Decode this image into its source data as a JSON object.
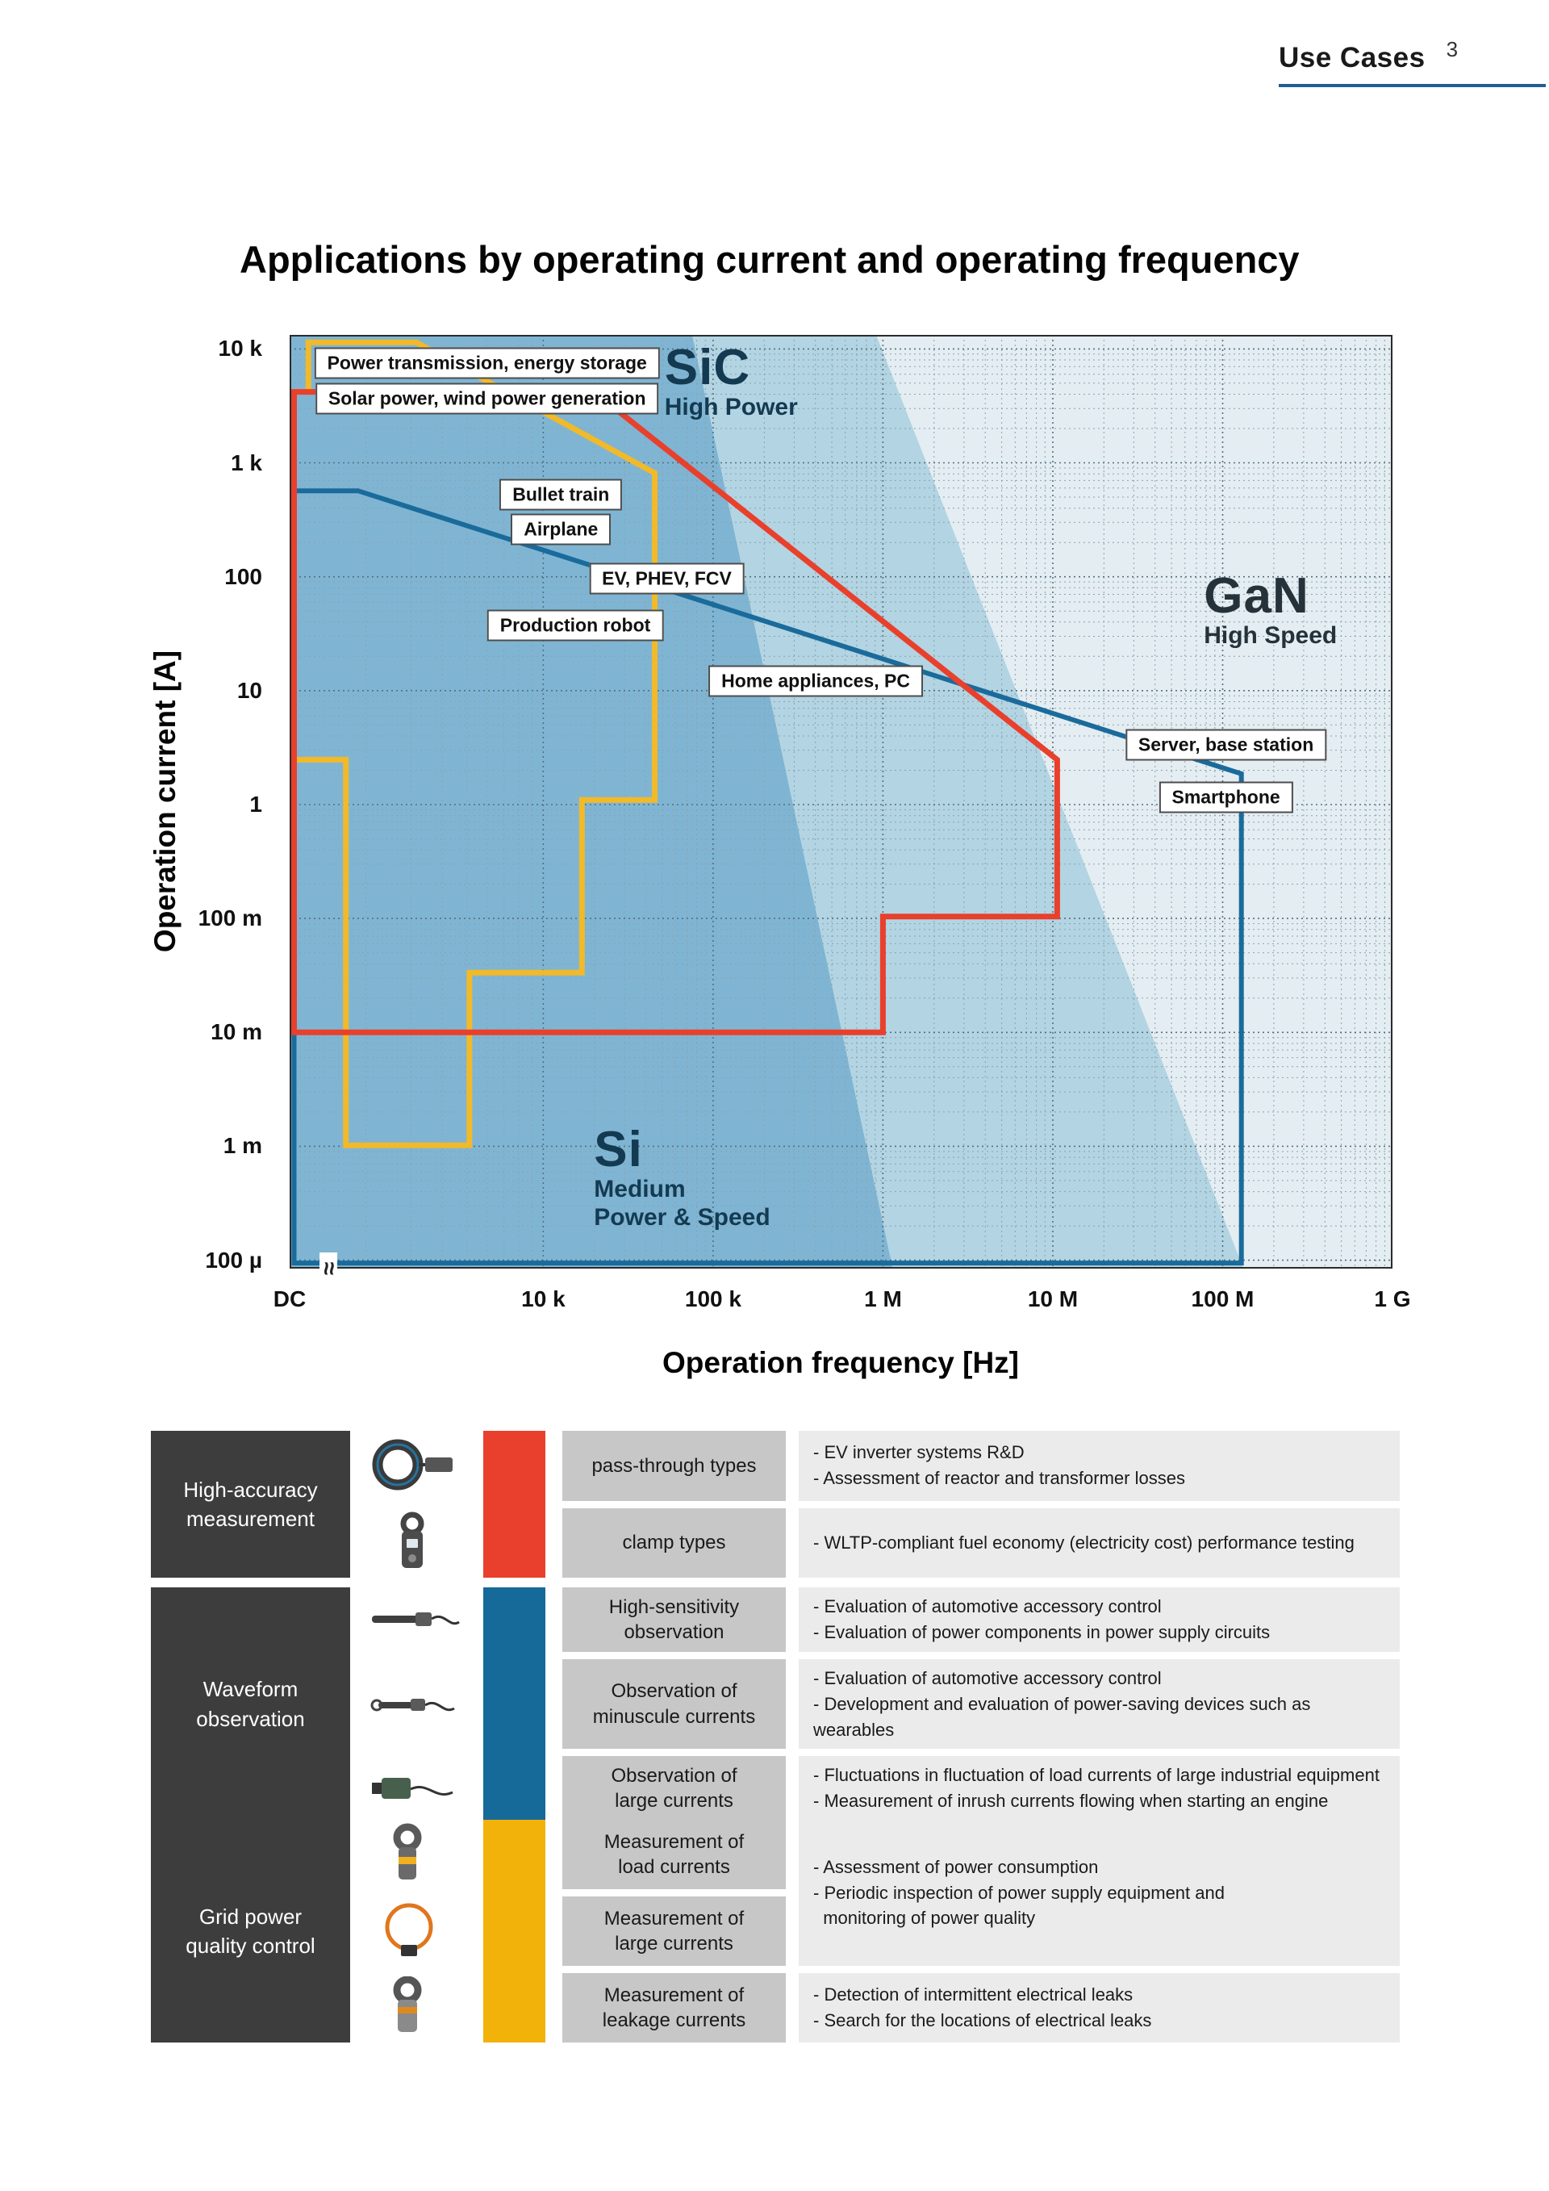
{
  "page": {
    "header": {
      "section_title": "Use Cases",
      "page_number": "3"
    },
    "title": "Applications by operating current and operating frequency"
  },
  "chart_data": {
    "type": "area",
    "title": "Applications by operating current and operating frequency",
    "xlabel": "Operation frequency [Hz]",
    "ylabel": "Operation current [A]",
    "x_scale": "log with axis break after DC",
    "y_scale": "log",
    "grid": "dotted log-log grid",
    "x_ticks": [
      {
        "label": "DC",
        "pos": 0.0
      },
      {
        "label": "10 k",
        "pos": 0.23
      },
      {
        "label": "100 k",
        "pos": 0.384
      },
      {
        "label": "1 M",
        "pos": 0.538
      },
      {
        "label": "10 M",
        "pos": 0.692
      },
      {
        "label": "100 M",
        "pos": 0.846
      },
      {
        "label": "1 G",
        "pos": 1.0
      }
    ],
    "y_ticks": [
      {
        "label": "10 k",
        "pos": 0.015
      },
      {
        "label": "1 k",
        "pos": 0.137
      },
      {
        "label": "100",
        "pos": 0.259
      },
      {
        "label": "10",
        "pos": 0.381
      },
      {
        "label": "1",
        "pos": 0.503
      },
      {
        "label": "100 m",
        "pos": 0.625
      },
      {
        "label": "10 m",
        "pos": 0.747
      },
      {
        "label": "1 m",
        "pos": 0.869
      },
      {
        "label": "100 µ",
        "pos": 0.991
      }
    ],
    "regions": [
      {
        "id": "si",
        "label": "Si",
        "sublabel": "Medium\nPower & Speed",
        "fill": "#7fb5d3",
        "label_color": "#143a52",
        "label_pos": {
          "x": 0.276,
          "y": 0.845
        },
        "polygon": [
          [
            0,
            0
          ],
          [
            0.365,
            0
          ],
          [
            0.547,
            1
          ],
          [
            0,
            1
          ]
        ]
      },
      {
        "id": "sic",
        "label": "SiC",
        "sublabel": "High Power",
        "fill": "#b3d4e2",
        "label_color": "#143a52",
        "label_pos": {
          "x": 0.34,
          "y": 0.008
        },
        "polygon": [
          [
            0.365,
            0
          ],
          [
            0.532,
            0
          ],
          [
            0.865,
            1
          ],
          [
            0.547,
            1
          ]
        ]
      },
      {
        "id": "gan",
        "label": "GaN",
        "sublabel": "High Speed",
        "fill": "#e4edf2",
        "label_color": "#26323a",
        "label_pos": {
          "x": 0.829,
          "y": 0.252
        },
        "polygon": [
          [
            0.532,
            0
          ],
          [
            1,
            0
          ],
          [
            1,
            1
          ],
          [
            0.865,
            1
          ]
        ]
      }
    ],
    "outlines": [
      {
        "id": "waveform-observation",
        "color": "#1a6b9b",
        "width": 6,
        "points": [
          [
            0.004,
            0.167
          ],
          [
            0.062,
            0.167
          ],
          [
            0.863,
            0.47
          ],
          [
            0.863,
            0.994
          ],
          [
            0.004,
            0.994
          ]
        ]
      },
      {
        "id": "grid-power-quality",
        "color": "#f2b929",
        "width": 7,
        "points": [
          [
            0.004,
            0.455
          ],
          [
            0.051,
            0.455
          ],
          [
            0.051,
            0.868
          ],
          [
            0.163,
            0.868
          ],
          [
            0.163,
            0.683
          ],
          [
            0.265,
            0.683
          ],
          [
            0.265,
            0.498
          ],
          [
            0.331,
            0.498
          ],
          [
            0.331,
            0.148
          ],
          [
            0.115,
            0.008
          ],
          [
            0.017,
            0.008
          ],
          [
            0.017,
            0.061
          ],
          [
            0.004,
            0.061
          ]
        ]
      },
      {
        "id": "high-accuracy-measurement",
        "color": "#e8402c",
        "width": 7,
        "points": [
          [
            0.004,
            0.061
          ],
          [
            0.276,
            0.061
          ],
          [
            0.696,
            0.455
          ],
          [
            0.696,
            0.623
          ],
          [
            0.538,
            0.623
          ],
          [
            0.538,
            0.747
          ],
          [
            0.004,
            0.747
          ]
        ]
      }
    ],
    "annotations": [
      {
        "text": "Power transmission, energy storage",
        "x": 0.179,
        "y": 0.03
      },
      {
        "text": "Solar power, wind power generation",
        "x": 0.179,
        "y": 0.068
      },
      {
        "text": "Bullet train",
        "x": 0.246,
        "y": 0.171
      },
      {
        "text": "Airplane",
        "x": 0.246,
        "y": 0.208
      },
      {
        "text": "EV, PHEV, FCV",
        "x": 0.342,
        "y": 0.261
      },
      {
        "text": "Production robot",
        "x": 0.259,
        "y": 0.311
      },
      {
        "text": "Home appliances, PC",
        "x": 0.477,
        "y": 0.371
      },
      {
        "text": "Server, base station",
        "x": 0.849,
        "y": 0.439
      },
      {
        "text": "Smartphone",
        "x": 0.849,
        "y": 0.495
      }
    ]
  },
  "table": {
    "groups": [
      {
        "title": "High-accuracy\nmeasurement",
        "color": "#e8402c",
        "rows": [
          {
            "label": "pass-through types",
            "desc": "- EV inverter systems R&D\n- Assessment of reactor and transformer losses"
          },
          {
            "label": "clamp types",
            "desc": "- WLTP-compliant fuel economy (electricity cost) performance testing"
          }
        ]
      },
      {
        "title": "Waveform\nobservation",
        "color": "#156a9a",
        "rows": [
          {
            "label": "High-sensitivity\nobservation",
            "desc": "- Evaluation of automotive accessory control\n- Evaluation of power components in power supply circuits"
          },
          {
            "label": "Observation of\nminuscule currents",
            "desc": "- Evaluation of automotive accessory control\n- Development and evaluation of power-saving devices such as wearables"
          },
          {
            "label": "Observation of\nlarge currents",
            "desc": "- Fluctuations in fluctuation of load currents of large industrial equipment\n- Measurement of inrush currents flowing when starting an engine"
          }
        ]
      },
      {
        "title": "Grid power\nquality control",
        "color": "#f2b20a",
        "desc_merged": "- Assessment of power consumption\n- Periodic inspection of power supply equipment and\n  monitoring of power quality",
        "rows": [
          {
            "label": "Measurement of\nload currents"
          },
          {
            "label": "Measurement of\nlarge currents"
          },
          {
            "label": "Measurement of\nleakage currents",
            "desc": "- Detection of intermittent electrical leaks\n- Search for the locations of electrical leaks"
          }
        ]
      }
    ]
  }
}
